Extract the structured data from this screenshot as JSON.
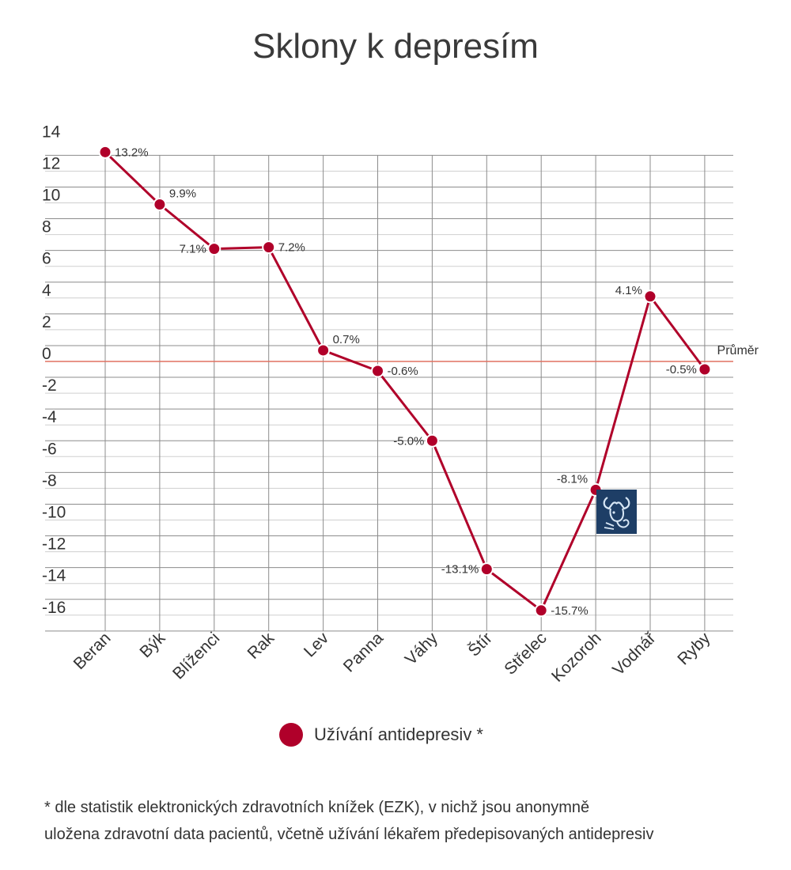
{
  "chart_data": {
    "type": "line",
    "title": "Sklony k depresím",
    "categories": [
      "Beran",
      "Býk",
      "Blíženci",
      "Rak",
      "Lev",
      "Panna",
      "Váhy",
      "Štír",
      "Střelec",
      "Kozoroh",
      "Vodnář",
      "Ryby"
    ],
    "series": [
      {
        "name": "Užívání antidepresiv *",
        "values": [
          13.2,
          9.9,
          7.1,
          7.2,
          0.7,
          -0.6,
          -5.0,
          -13.1,
          -15.7,
          -8.1,
          4.1,
          -0.5
        ],
        "labels": [
          "13.2%",
          "9.9%",
          "7.1%",
          "7.2%",
          "0.7%",
          "-0.6%",
          "-5.0%",
          "-13.1%",
          "-15.7%",
          "-8.1%",
          "4.1%",
          "-0.5%"
        ],
        "color": "#b0002a"
      }
    ],
    "y_ticks": [
      "14",
      "12",
      "10",
      "8",
      "6",
      "4",
      "2",
      "0",
      "-2",
      "-4",
      "-6",
      "-8",
      "-10",
      "-12",
      "-14",
      "-16"
    ],
    "ylim": [
      -16,
      14
    ],
    "grid": true,
    "reference_line": {
      "value": 0,
      "label": "Průměr",
      "color": "#e07060"
    },
    "legend_position": "bottom",
    "annotation_icon": "capricorn-icon"
  },
  "legend": {
    "label": "Užívání antidepresiv *",
    "color": "#b0002a"
  },
  "footnote": {
    "line1": "* dle statistik elektronických zdravotních knížek (EZK), v nichž jsou anonymně",
    "line2": "uložena zdravotní data pacientů, včetně užívání lékařem předepisovaných antidepresiv"
  }
}
